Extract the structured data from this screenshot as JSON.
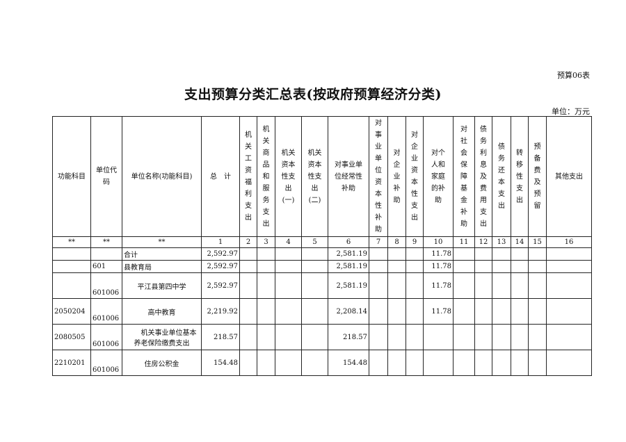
{
  "form_no": "预算06表",
  "title": "支出预算分类汇总表(按政府预算经济分类)",
  "unit": "单位：万元",
  "headers": [
    "功能科目",
    "单位代\n码",
    "单位名称(功能科目)",
    "总　计",
    "机\n关\n工\n资\n福\n利\n支\n出",
    "机\n关\n商\n品\n和\n服\n务\n支\n出",
    "机关\n资本\n性支\n出\n(一)",
    "机关\n资本\n性支\n出\n(二)",
    "对事业单\n位经常性\n补助",
    "对\n事\n业\n单\n位\n资\n本\n性\n补\n助",
    "对\n企\n业\n补\n助",
    "对\n企\n业\n资\n本\n性\n支\n出",
    "对个\n人和\n家庭\n的补\n助",
    "对\n社\n会\n保\n障\n基\n金\n补\n助",
    "债\n务\n利\n息\n及\n费\n用\n支\n出",
    "债\n务\n还\n本\n支\n出",
    "转\n移\n性\n支\n出",
    "预\n备\n费\n及\n预\n留",
    "其他支出"
  ],
  "index_row": [
    "**",
    "**",
    "**",
    "1",
    "2",
    "3",
    "4",
    "5",
    "6",
    "7",
    "8",
    "9",
    "10",
    "11",
    "12",
    "13",
    "14",
    "15",
    "16"
  ],
  "rows": [
    {
      "func": "",
      "code": "",
      "name": "合计",
      "total": "2,592.97",
      "c6": "2,581.19",
      "c10": "11.78"
    },
    {
      "func": "",
      "code": "601",
      "name": "县教育局",
      "total": "2,592.97",
      "c6": "2,581.19",
      "c10": "11.78"
    },
    {
      "func": "",
      "code": "601006",
      "name": "平江县第四中学",
      "total": "2,592.97",
      "c6": "2,581.19",
      "c10": "11.78"
    },
    {
      "func": "2050204",
      "code": "601006",
      "name": "高中教育",
      "total": "2,219.92",
      "c6": "2,208.14",
      "c10": "11.78"
    },
    {
      "func": "2080505",
      "code": "601006",
      "name": "　　机关事业单位基本养老保险缴费支出",
      "total": "218.57",
      "c6": "218.57",
      "c10": ""
    },
    {
      "func": "2210201",
      "code": "601006",
      "name": "住房公积金",
      "total": "154.48",
      "c6": "154.48",
      "c10": ""
    }
  ]
}
